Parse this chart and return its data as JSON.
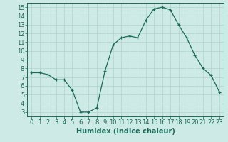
{
  "x": [
    0,
    1,
    2,
    3,
    4,
    5,
    6,
    7,
    8,
    9,
    10,
    11,
    12,
    13,
    14,
    15,
    16,
    17,
    18,
    19,
    20,
    21,
    22,
    23
  ],
  "y": [
    7.5,
    7.5,
    7.3,
    6.7,
    6.7,
    5.5,
    3.0,
    3.0,
    3.5,
    7.7,
    10.7,
    11.5,
    11.7,
    11.5,
    13.5,
    14.8,
    15.0,
    14.7,
    13.0,
    11.5,
    9.5,
    8.0,
    7.2,
    5.3
  ],
  "line_color": "#1a6b5a",
  "marker": "+",
  "marker_size": 3.5,
  "bg_color": "#ceeae6",
  "grid_color": "#afd4ce",
  "xlabel": "Humidex (Indice chaleur)",
  "xlim": [
    -0.5,
    23.5
  ],
  "ylim": [
    2.5,
    15.5
  ],
  "xtick_labels": [
    "0",
    "1",
    "2",
    "3",
    "4",
    "5",
    "6",
    "7",
    "8",
    "9",
    "10",
    "11",
    "12",
    "13",
    "14",
    "15",
    "16",
    "17",
    "18",
    "19",
    "20",
    "21",
    "22",
    "23"
  ],
  "ytick_values": [
    3,
    4,
    5,
    6,
    7,
    8,
    9,
    10,
    11,
    12,
    13,
    14,
    15
  ],
  "xlabel_fontsize": 7,
  "tick_fontsize": 6
}
